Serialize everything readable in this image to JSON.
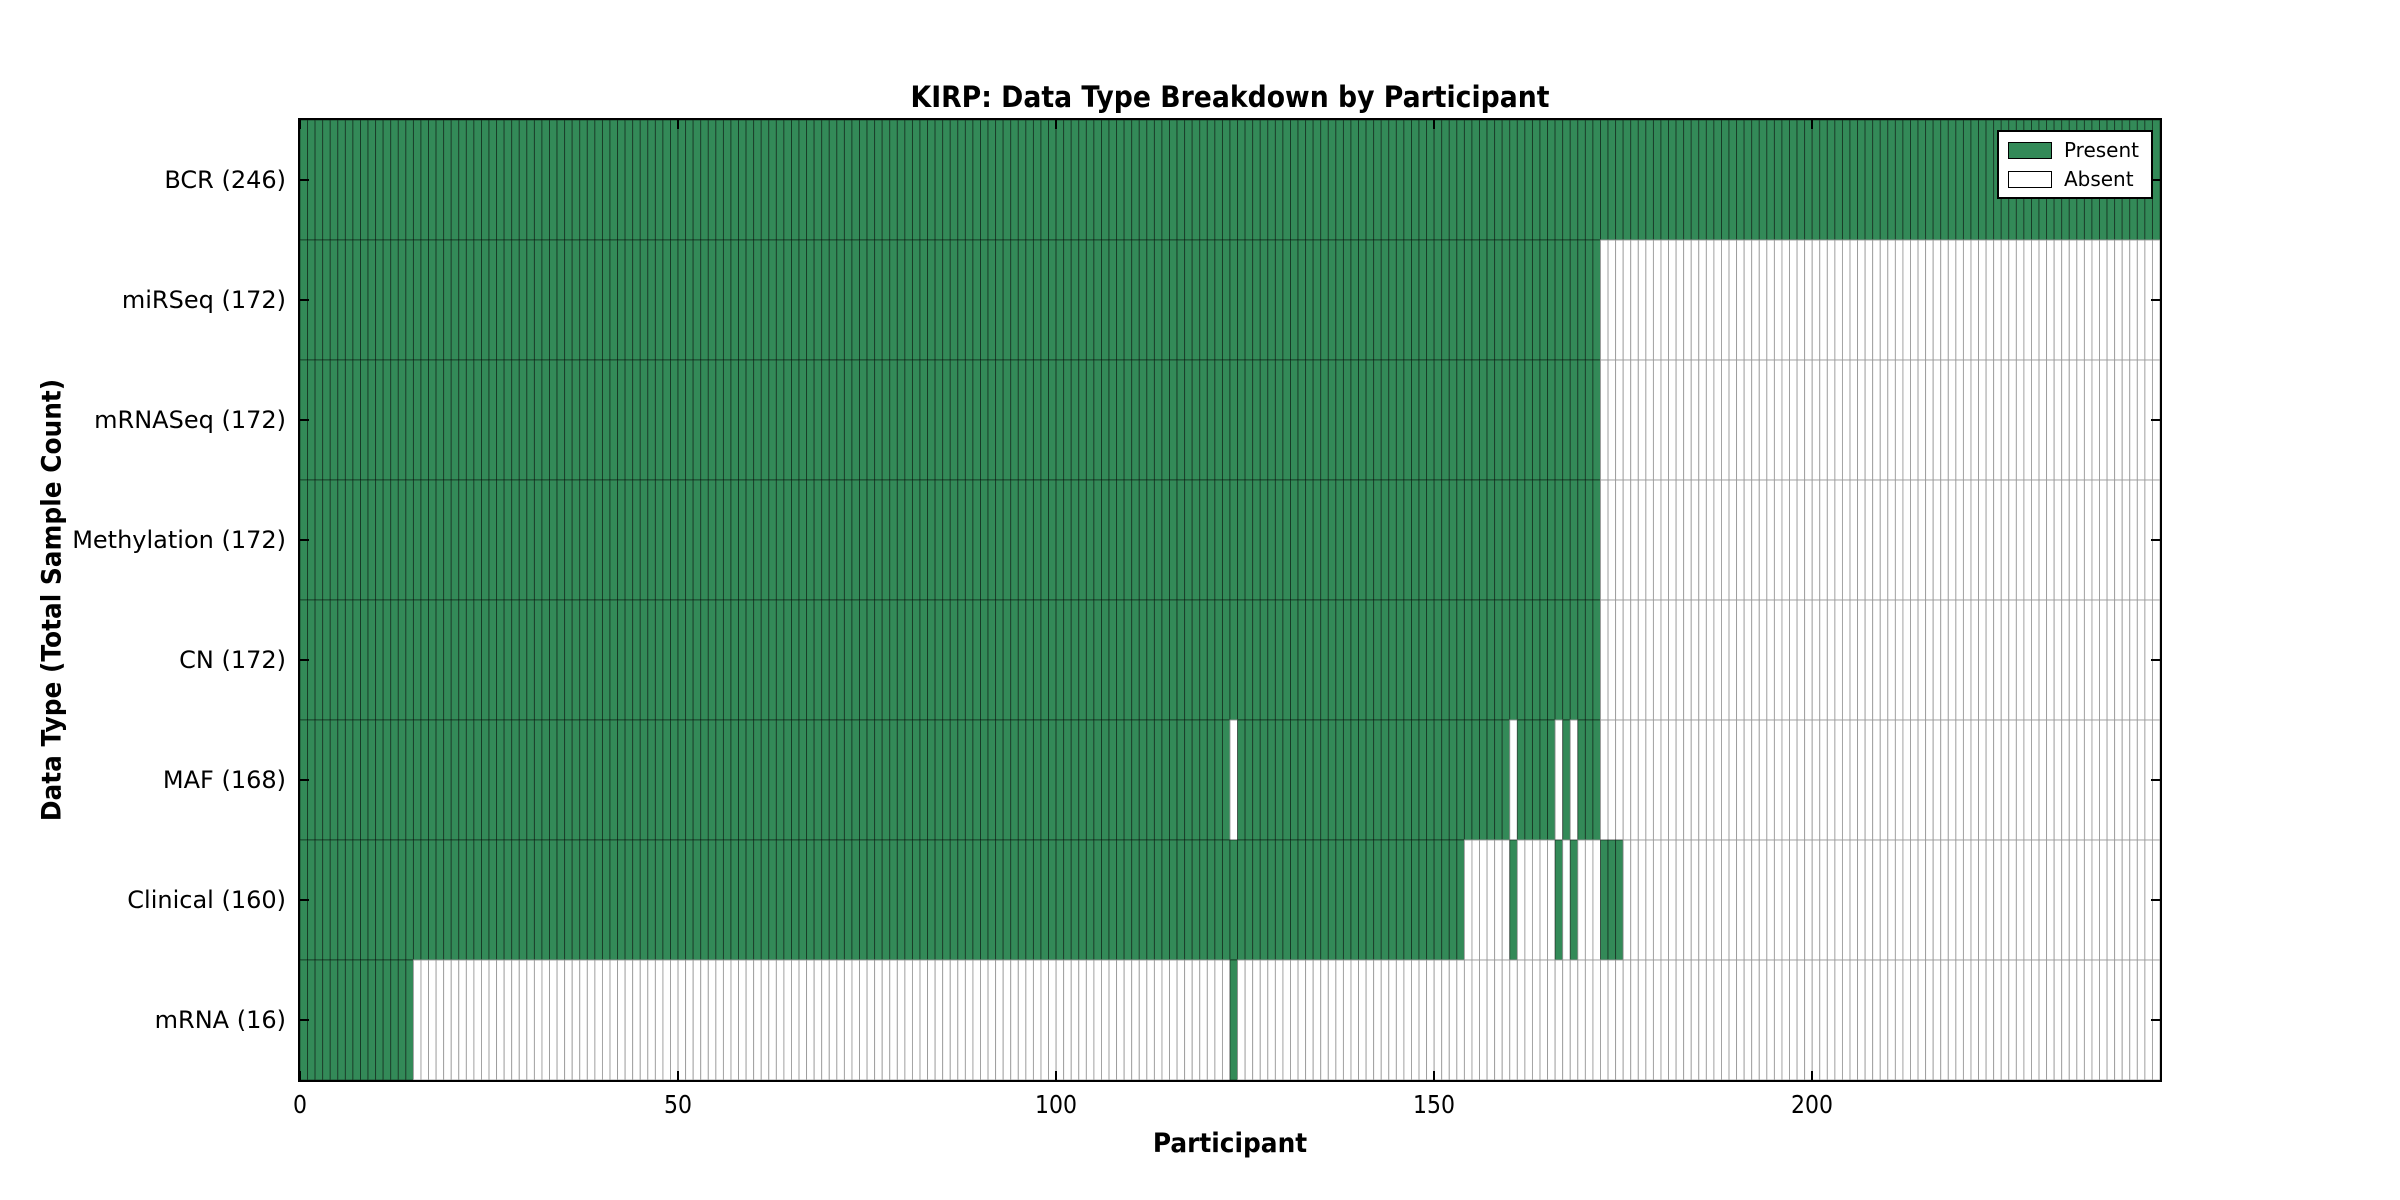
{
  "chart_data": {
    "type": "heatmap",
    "title": "KIRP: Data Type Breakdown by Participant",
    "xlabel": "Participant",
    "ylabel": "Data Type (Total Sample Count)",
    "x_ticks": [
      0,
      50,
      100,
      150,
      200
    ],
    "x_range": [
      0,
      246
    ],
    "n_participants": 246,
    "grid": false,
    "legend_position": "upper right",
    "legend": [
      {
        "label": "Present",
        "swatch_color": "#338a58"
      },
      {
        "label": "Absent",
        "swatch_color": "#ffffff"
      }
    ],
    "colors": {
      "present_fill": "#338a58",
      "absent_fill": "#ffffff",
      "present_edge": "rgba(0,0,0,0.50)",
      "absent_edge": "#9b9b9b",
      "spine": "#000000"
    },
    "rows": [
      {
        "label": "BCR (246)",
        "data_type": "BCR",
        "total_sample_count": 246,
        "present_runs": [
          [
            0,
            245
          ]
        ]
      },
      {
        "label": "miRSeq (172)",
        "data_type": "miRSeq",
        "total_sample_count": 172,
        "present_runs": [
          [
            0,
            171
          ]
        ]
      },
      {
        "label": "mRNASeq (172)",
        "data_type": "mRNASeq",
        "total_sample_count": 172,
        "present_runs": [
          [
            0,
            171
          ]
        ]
      },
      {
        "label": "Methylation (172)",
        "data_type": "Methylation",
        "total_sample_count": 172,
        "present_runs": [
          [
            0,
            171
          ]
        ]
      },
      {
        "label": "CN (172)",
        "data_type": "CN",
        "total_sample_count": 172,
        "present_runs": [
          [
            0,
            171
          ]
        ]
      },
      {
        "label": "MAF (168)",
        "data_type": "MAF",
        "total_sample_count": 168,
        "present_runs": [
          [
            0,
            122
          ],
          [
            124,
            159
          ],
          [
            161,
            165
          ],
          [
            167,
            167
          ],
          [
            169,
            171
          ]
        ]
      },
      {
        "label": "Clinical (160)",
        "data_type": "Clinical",
        "total_sample_count": 160,
        "present_runs": [
          [
            0,
            153
          ],
          [
            160,
            160
          ],
          [
            166,
            166
          ],
          [
            168,
            168
          ],
          [
            172,
            174
          ]
        ]
      },
      {
        "label": "mRNA (16)",
        "data_type": "mRNA",
        "total_sample_count": 16,
        "present_runs": [
          [
            0,
            14
          ],
          [
            123,
            123
          ]
        ]
      }
    ]
  }
}
